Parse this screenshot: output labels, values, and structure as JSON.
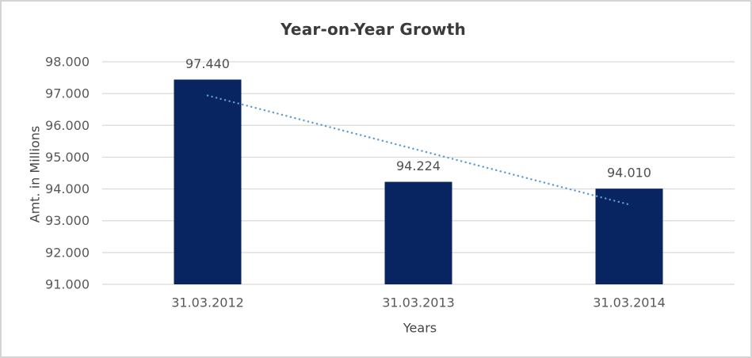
{
  "chart_data": {
    "type": "bar",
    "title": "Year-on-Year Growth",
    "xlabel": "Years",
    "ylabel": "Amt. in Millions",
    "categories": [
      "31.03.2012",
      "31.03.2013",
      "31.03.2014"
    ],
    "values": [
      97440,
      94224,
      94010
    ],
    "value_labels": [
      "97.440",
      "94.224",
      "94.010"
    ],
    "ylim": [
      91000,
      98000
    ],
    "ytick_step": 1000,
    "ytick_labels": [
      "98.000",
      "97.000",
      "96.000",
      "95.000",
      "94.000",
      "93.000",
      "92.000",
      "91.000"
    ],
    "grid": true,
    "legend": false,
    "trendline": {
      "type": "linear",
      "style": "dotted",
      "series": "values"
    }
  },
  "colors": {
    "bar": "#082562",
    "trendline": "#5b9bd5",
    "gridline": "#d9d9d9",
    "chart_border": "#d4d4d4",
    "title_text": "#3b3b3b",
    "axis_title_text": "#454545",
    "tick_text": "#595959",
    "data_label_text": "#505050"
  }
}
